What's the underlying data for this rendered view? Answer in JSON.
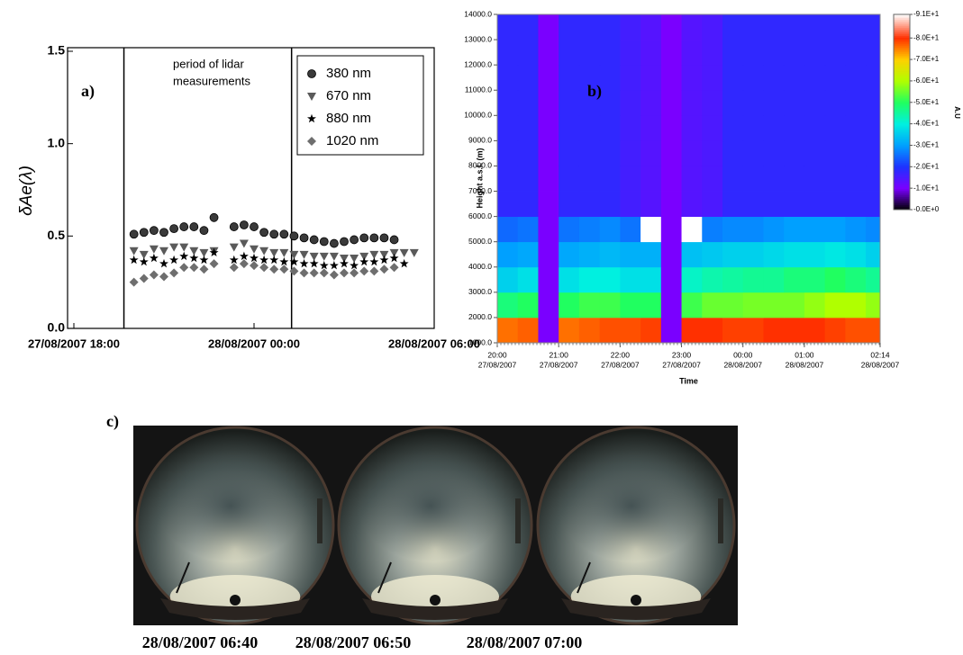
{
  "chart_data": [
    {
      "type": "scatter",
      "label": "a)",
      "annotation": [
        "period of lidar",
        "measurements"
      ],
      "ylabel": "δAe(λ)",
      "x": [
        "27/08/2007 20:00",
        "27/08/2007 20:20",
        "27/08/2007 20:40",
        "27/08/2007 21:00",
        "27/08/2007 21:20",
        "27/08/2007 21:40",
        "27/08/2007 22:00",
        "27/08/2007 22:20",
        "27/08/2007 22:40",
        "27/08/2007 23:00",
        "27/08/2007 23:20",
        "27/08/2007 23:40",
        "28/08/2007 00:00",
        "28/08/2007 00:20",
        "28/08/2007 00:40",
        "28/08/2007 01:00",
        "28/08/2007 01:20",
        "28/08/2007 01:40",
        "28/08/2007 02:00",
        "28/08/2007 02:20",
        "28/08/2007 02:40",
        "28/08/2007 03:00",
        "28/08/2007 03:20",
        "28/08/2007 03:40",
        "28/08/2007 04:00",
        "28/08/2007 04:20",
        "28/08/2007 04:40",
        "28/08/2007 05:00",
        "28/08/2007 05:20"
      ],
      "series": [
        {
          "name": "380 nm",
          "color": "#3a3a3a",
          "marker": "circle",
          "values": [
            0.51,
            0.52,
            0.53,
            0.52,
            0.54,
            0.55,
            0.55,
            0.53,
            0.6,
            null,
            0.55,
            0.56,
            0.55,
            0.52,
            0.51,
            0.51,
            0.5,
            0.49,
            0.48,
            0.47,
            0.46,
            0.47,
            0.48,
            0.49,
            0.49,
            0.49,
            0.48,
            null,
            null
          ]
        },
        {
          "name": "670 nm",
          "color": "#5a5a5a",
          "marker": "triangle-down",
          "values": [
            0.42,
            0.4,
            0.43,
            0.42,
            0.44,
            0.44,
            0.42,
            0.41,
            0.42,
            null,
            0.44,
            0.46,
            0.43,
            0.42,
            0.41,
            0.41,
            0.4,
            0.4,
            0.39,
            0.39,
            0.39,
            0.38,
            0.38,
            0.39,
            0.4,
            0.4,
            0.41,
            0.41,
            0.41
          ]
        },
        {
          "name": "880 nm",
          "color": "#000000",
          "marker": "star",
          "values": [
            0.37,
            0.36,
            0.38,
            0.35,
            0.37,
            0.39,
            0.38,
            0.37,
            0.41,
            null,
            0.37,
            0.39,
            0.38,
            0.37,
            0.37,
            0.36,
            0.36,
            0.35,
            0.35,
            0.34,
            0.34,
            0.35,
            0.34,
            0.36,
            0.36,
            0.37,
            0.38,
            0.35,
            null
          ]
        },
        {
          "name": "1020 nm",
          "color": "#6e6e6e",
          "marker": "diamond",
          "values": [
            0.25,
            0.27,
            0.29,
            0.28,
            0.3,
            0.33,
            0.33,
            0.32,
            0.35,
            null,
            0.33,
            0.35,
            0.34,
            0.33,
            0.32,
            0.32,
            0.31,
            0.3,
            0.3,
            0.3,
            0.29,
            0.3,
            0.3,
            0.31,
            0.31,
            0.32,
            0.33,
            null,
            null
          ]
        }
      ],
      "period_lines": [
        "27/08/2007 19:40",
        "28/08/2007 01:15"
      ],
      "xlim": [
        "27/08/2007 18:00",
        "28/08/2007 06:00"
      ],
      "xticks": [
        "27/08/2007 18:00",
        "28/08/2007 00:00",
        "28/08/2007 06:00"
      ],
      "ylim": [
        0,
        1.5
      ],
      "yticks": [
        {
          "value": 0,
          "label": "0.0"
        },
        {
          "value": 0.5,
          "label": "0.5"
        },
        {
          "value": 1,
          "label": "1.0"
        },
        {
          "value": 1.5,
          "label": "1.5"
        }
      ],
      "legend": "upper right"
    },
    {
      "type": "heatmap",
      "label": "b)",
      "xlabel": "Time",
      "ylabel": "Height a.s.l. (m)",
      "x": [
        "27/08/2007 20:00",
        "27/08/2007 20:20",
        "27/08/2007 20:40",
        "27/08/2007 21:00",
        "27/08/2007 21:20",
        "27/08/2007 21:40",
        "27/08/2007 22:00",
        "27/08/2007 22:20",
        "27/08/2007 22:40",
        "27/08/2007 23:00",
        "27/08/2007 23:20",
        "27/08/2007 23:40",
        "28/08/2007 00:00",
        "28/08/2007 00:20",
        "28/08/2007 00:40",
        "28/08/2007 01:00",
        "28/08/2007 01:20",
        "28/08/2007 01:40",
        "28/08/2007 02:00"
      ],
      "y": [
        1000,
        2000,
        3000,
        4000,
        5000,
        6000,
        7000,
        8000,
        9000,
        10000,
        11000,
        12000,
        13000
      ],
      "z": [
        [
          76,
          77,
          10,
          76,
          77,
          78,
          78,
          79,
          10,
          80,
          80,
          79,
          79,
          80,
          80,
          80,
          79,
          78,
          78
        ],
        [
          48,
          50,
          10,
          50,
          52,
          52,
          50,
          50,
          10,
          52,
          55,
          55,
          56,
          56,
          56,
          58,
          60,
          60,
          58
        ],
        [
          36,
          38,
          10,
          38,
          40,
          40,
          38,
          38,
          10,
          42,
          44,
          45,
          46,
          46,
          48,
          48,
          50,
          48,
          46
        ],
        [
          30,
          31,
          10,
          31,
          32,
          33,
          32,
          32,
          10,
          34,
          35,
          36,
          36,
          37,
          38,
          38,
          39,
          38,
          36
        ],
        [
          25,
          26,
          10,
          26,
          27,
          28,
          26,
          91,
          10,
          91,
          27,
          28,
          28,
          29,
          30,
          30,
          30,
          29,
          28
        ],
        [
          18,
          18,
          10,
          18,
          18,
          18,
          16,
          14,
          10,
          14,
          15,
          18,
          18,
          18,
          18,
          18,
          18,
          18,
          18
        ],
        [
          18,
          18,
          10,
          18,
          18,
          18,
          16,
          14,
          10,
          14,
          15,
          18,
          18,
          18,
          18,
          18,
          18,
          18,
          18
        ],
        [
          18,
          18,
          10,
          18,
          18,
          18,
          16,
          14,
          10,
          14,
          15,
          18,
          18,
          18,
          18,
          18,
          18,
          18,
          18
        ],
        [
          18,
          18,
          10,
          18,
          18,
          18,
          16,
          14,
          10,
          14,
          15,
          18,
          18,
          18,
          18,
          18,
          18,
          18,
          18
        ],
        [
          18,
          18,
          10,
          18,
          18,
          18,
          16,
          14,
          10,
          14,
          15,
          18,
          18,
          18,
          18,
          18,
          18,
          18,
          18
        ],
        [
          18,
          18,
          10,
          18,
          18,
          18,
          16,
          14,
          10,
          14,
          15,
          18,
          18,
          18,
          18,
          18,
          18,
          18,
          18
        ],
        [
          18,
          18,
          10,
          18,
          18,
          18,
          16,
          14,
          10,
          14,
          15,
          18,
          18,
          18,
          18,
          18,
          18,
          18,
          18
        ],
        [
          18,
          18,
          10,
          18,
          18,
          18,
          16,
          14,
          10,
          14,
          15,
          18,
          18,
          18,
          18,
          18,
          18,
          18,
          18
        ]
      ],
      "xlim": [
        "27/08/2007 20:00",
        "28/08/2007 02:14"
      ],
      "xticks": [
        {
          "value": "27/08/2007 20:00",
          "label": [
            "20:00",
            "27/08/2007"
          ]
        },
        {
          "value": "27/08/2007 21:00",
          "label": [
            "21:00",
            "27/08/2007"
          ]
        },
        {
          "value": "27/08/2007 22:00",
          "label": [
            "22:00",
            "27/08/2007"
          ]
        },
        {
          "value": "27/08/2007 23:00",
          "label": [
            "23:00",
            "27/08/2007"
          ]
        },
        {
          "value": "28/08/2007 00:00",
          "label": [
            "00:00",
            "28/08/2007"
          ]
        },
        {
          "value": "28/08/2007 01:00",
          "label": [
            "01:00",
            "28/08/2007"
          ]
        },
        {
          "value": "28/08/2007 02:14",
          "label": [
            "02:14",
            "28/08/2007"
          ]
        }
      ],
      "ylim": [
        1000,
        14000
      ],
      "yticks": [
        {
          "value": 1000,
          "label": "1000.0"
        },
        {
          "value": 2000,
          "label": "2000.0"
        },
        {
          "value": 3000,
          "label": "3000.0"
        },
        {
          "value": 4000,
          "label": "4000.0"
        },
        {
          "value": 5000,
          "label": "5000.0"
        },
        {
          "value": 6000,
          "label": "6000.0"
        },
        {
          "value": 7000,
          "label": "7000.0"
        },
        {
          "value": 8000,
          "label": "8000.0"
        },
        {
          "value": 9000,
          "label": "9000.0"
        },
        {
          "value": 10000,
          "label": "10000.0"
        },
        {
          "value": 11000,
          "label": "11000.0"
        },
        {
          "value": 12000,
          "label": "12000.0"
        },
        {
          "value": 13000,
          "label": "13000.0"
        },
        {
          "value": 14000,
          "label": "14000.0"
        }
      ],
      "colorbar": {
        "label": "A.U",
        "ticks": [
          {
            "value": 0,
            "label": "-0.0E+0"
          },
          {
            "value": 10,
            "label": "-1.0E+1"
          },
          {
            "value": 20,
            "label": "-2.0E+1"
          },
          {
            "value": 30,
            "label": "-3.0E+1"
          },
          {
            "value": 40,
            "label": "-4.0E+1"
          },
          {
            "value": 50,
            "label": "-5.0E+1"
          },
          {
            "value": 60,
            "label": "-6.0E+1"
          },
          {
            "value": 70,
            "label": "-7.0E+1"
          },
          {
            "value": 80,
            "label": "-8.0E+1"
          },
          {
            "value": 91,
            "label": "-9.1E+1"
          }
        ],
        "colors": [
          "#000000",
          "#7a00ff",
          "#1e32ff",
          "#00a0ff",
          "#00f0e0",
          "#20ff60",
          "#b0ff00",
          "#ffd000",
          "#ff3000",
          "#ffffff"
        ]
      }
    }
  ],
  "photos": {
    "label": "c)",
    "captions": [
      "28/08/2007 06:40",
      "28/08/2007 06:50",
      "28/08/2007 07:00"
    ]
  }
}
